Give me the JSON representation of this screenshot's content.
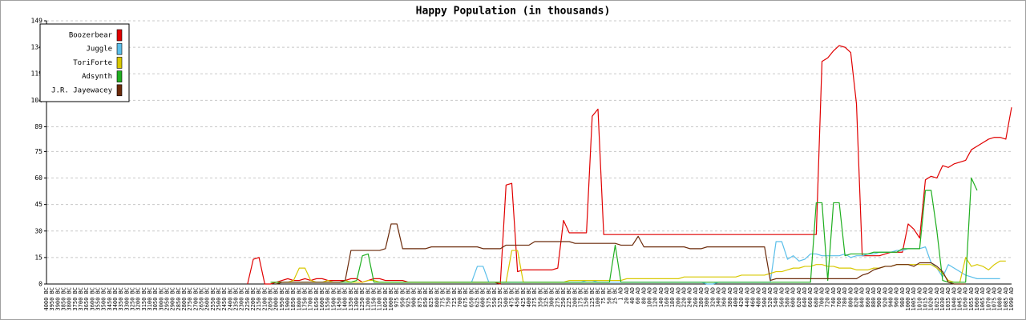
{
  "chart_data": {
    "type": "line",
    "title": "Happy Population (in thousands)",
    "categories": [
      "4000 BC",
      "3950 BC",
      "3900 BC",
      "3850 BC",
      "3800 BC",
      "3750 BC",
      "3700 BC",
      "3650 BC",
      "3600 BC",
      "3550 BC",
      "3500 BC",
      "3450 BC",
      "3400 BC",
      "3350 BC",
      "3300 BC",
      "3250 BC",
      "3200 BC",
      "3150 BC",
      "3100 BC",
      "3050 BC",
      "3000 BC",
      "2950 BC",
      "2900 BC",
      "2850 BC",
      "2800 BC",
      "2750 BC",
      "2700 BC",
      "2650 BC",
      "2600 BC",
      "2550 BC",
      "2500 BC",
      "2450 BC",
      "2400 BC",
      "2350 BC",
      "2300 BC",
      "2250 BC",
      "2200 BC",
      "2150 BC",
      "2100 BC",
      "2050 BC",
      "2000 BC",
      "1950 BC",
      "1900 BC",
      "1850 BC",
      "1800 BC",
      "1750 BC",
      "1700 BC",
      "1650 BC",
      "1600 BC",
      "1550 BC",
      "1500 BC",
      "1450 BC",
      "1400 BC",
      "1350 BC",
      "1300 BC",
      "1250 BC",
      "1200 BC",
      "1150 BC",
      "1100 BC",
      "1050 BC",
      "1000 BC",
      "975 BC",
      "950 BC",
      "925 BC",
      "900 BC",
      "875 BC",
      "850 BC",
      "825 BC",
      "800 BC",
      "775 BC",
      "750 BC",
      "725 BC",
      "700 BC",
      "675 BC",
      "650 BC",
      "625 BC",
      "600 BC",
      "575 BC",
      "550 BC",
      "525 BC",
      "500 BC",
      "475 BC",
      "450 BC",
      "425 BC",
      "400 BC",
      "375 BC",
      "350 BC",
      "325 BC",
      "300 BC",
      "275 BC",
      "250 BC",
      "225 BC",
      "200 BC",
      "175 BC",
      "150 BC",
      "125 BC",
      "100 BC",
      "75 BC",
      "50 BC",
      "25 BC",
      "1 AD",
      "20 AD",
      "40 AD",
      "60 AD",
      "80 AD",
      "100 AD",
      "120 AD",
      "140 AD",
      "160 AD",
      "180 AD",
      "200 AD",
      "220 AD",
      "240 AD",
      "260 AD",
      "280 AD",
      "300 AD",
      "320 AD",
      "340 AD",
      "360 AD",
      "380 AD",
      "400 AD",
      "420 AD",
      "440 AD",
      "460 AD",
      "480 AD",
      "500 AD",
      "520 AD",
      "540 AD",
      "560 AD",
      "580 AD",
      "600 AD",
      "620 AD",
      "640 AD",
      "660 AD",
      "680 AD",
      "700 AD",
      "720 AD",
      "740 AD",
      "760 AD",
      "780 AD",
      "800 AD",
      "820 AD",
      "840 AD",
      "860 AD",
      "880 AD",
      "900 AD",
      "920 AD",
      "940 AD",
      "960 AD",
      "980 AD",
      "1000 AD",
      "1005 AD",
      "1010 AD",
      "1015 AD",
      "1020 AD",
      "1025 AD",
      "1030 AD",
      "1035 AD",
      "1040 AD",
      "1045 AD",
      "1050 AD",
      "1055 AD",
      "1060 AD",
      "1065 AD",
      "1070 AD",
      "1075 AD",
      "1080 AD",
      "1085 AD",
      "1090 AD"
    ],
    "series": [
      {
        "name": "Boozerbear",
        "color": "#e00000",
        "values": [
          null,
          null,
          null,
          null,
          null,
          null,
          null,
          null,
          null,
          null,
          null,
          null,
          null,
          null,
          null,
          null,
          null,
          null,
          null,
          null,
          null,
          null,
          null,
          null,
          null,
          null,
          null,
          null,
          null,
          null,
          null,
          null,
          null,
          null,
          null,
          0,
          14,
          15,
          0,
          0,
          1,
          2,
          3,
          2,
          2,
          3,
          2,
          3,
          3,
          2,
          2,
          2,
          2,
          3,
          3,
          1,
          2,
          3,
          3,
          2,
          2,
          2,
          2,
          1,
          1,
          1,
          1,
          1,
          1,
          1,
          1,
          1,
          1,
          1,
          1,
          1,
          1,
          1,
          1,
          0,
          56,
          57,
          7,
          8,
          8,
          8,
          8,
          8,
          8,
          9,
          36,
          29,
          29,
          29,
          29,
          95,
          99,
          28,
          28,
          28,
          28,
          28,
          28,
          28,
          28,
          28,
          28,
          28,
          28,
          28,
          28,
          28,
          28,
          28,
          28,
          28,
          28,
          28,
          28,
          28,
          28,
          28,
          28,
          28,
          28,
          28,
          28,
          28,
          28,
          28,
          28,
          28,
          28,
          28,
          28,
          126,
          128,
          132,
          135,
          134,
          131,
          102,
          16,
          16,
          16,
          16,
          17,
          18,
          18,
          18,
          34,
          31,
          26,
          59,
          61,
          60,
          67,
          66,
          68,
          69,
          70,
          76,
          78,
          80,
          82,
          83,
          83,
          82,
          100
        ]
      },
      {
        "name": "Juggle",
        "color": "#5bbfea",
        "values": [
          null,
          null,
          null,
          null,
          null,
          null,
          null,
          null,
          null,
          null,
          null,
          null,
          null,
          null,
          null,
          null,
          null,
          null,
          null,
          null,
          null,
          null,
          null,
          null,
          null,
          null,
          null,
          null,
          null,
          null,
          null,
          null,
          null,
          null,
          null,
          null,
          null,
          null,
          null,
          null,
          null,
          null,
          null,
          null,
          null,
          null,
          null,
          null,
          null,
          null,
          null,
          null,
          null,
          null,
          null,
          null,
          null,
          null,
          null,
          null,
          null,
          null,
          null,
          null,
          null,
          null,
          null,
          null,
          null,
          null,
          null,
          null,
          1,
          1,
          1,
          10,
          10,
          1,
          1,
          1,
          1,
          1,
          1,
          1,
          1,
          1,
          1,
          1,
          1,
          1,
          1,
          1,
          1,
          1,
          2,
          2,
          1,
          1,
          1,
          1,
          1,
          1,
          1,
          1,
          1,
          1,
          1,
          1,
          1,
          1,
          1,
          1,
          1,
          1,
          1,
          0,
          0,
          1,
          1,
          1,
          1,
          1,
          1,
          1,
          1,
          1,
          1,
          24,
          24,
          14,
          16,
          13,
          14,
          17,
          17,
          16,
          16,
          16,
          16,
          17,
          15,
          16,
          16,
          17,
          17,
          18,
          18,
          18,
          19,
          19,
          20,
          20,
          20,
          21,
          12,
          9,
          4,
          11,
          9,
          7,
          5,
          4,
          3,
          3,
          3,
          3,
          3,
          null,
          null
        ]
      },
      {
        "name": "ToriForte",
        "color": "#d8c800",
        "values": [
          null,
          null,
          null,
          null,
          null,
          null,
          null,
          null,
          null,
          null,
          null,
          null,
          null,
          null,
          null,
          null,
          null,
          null,
          null,
          null,
          null,
          null,
          null,
          null,
          null,
          null,
          null,
          null,
          null,
          null,
          null,
          null,
          null,
          null,
          null,
          null,
          null,
          null,
          null,
          1,
          1,
          1,
          1,
          2,
          9,
          9,
          2,
          1,
          1,
          2,
          1,
          1,
          2,
          1,
          1,
          1,
          2,
          2,
          1,
          1,
          1,
          1,
          1,
          1,
          1,
          1,
          1,
          1,
          1,
          1,
          1,
          1,
          1,
          1,
          1,
          1,
          1,
          1,
          1,
          1,
          1,
          19,
          19,
          1,
          1,
          1,
          1,
          1,
          1,
          1,
          1,
          2,
          2,
          2,
          2,
          2,
          2,
          2,
          2,
          2,
          2,
          3,
          3,
          3,
          3,
          3,
          3,
          3,
          3,
          3,
          3,
          4,
          4,
          4,
          4,
          4,
          4,
          4,
          4,
          4,
          4,
          5,
          5,
          5,
          5,
          5,
          6,
          7,
          7,
          8,
          9,
          9,
          10,
          10,
          11,
          11,
          10,
          10,
          9,
          9,
          9,
          8,
          8,
          8,
          9,
          9,
          10,
          10,
          11,
          11,
          11,
          11,
          11,
          11,
          11,
          9,
          6,
          2,
          1,
          1,
          15,
          10,
          11,
          10,
          8,
          11,
          13,
          13,
          null
        ]
      },
      {
        "name": "Adsynth",
        "color": "#1fae1f",
        "values": [
          null,
          null,
          null,
          null,
          null,
          null,
          null,
          null,
          null,
          null,
          null,
          null,
          null,
          null,
          null,
          null,
          null,
          null,
          null,
          null,
          null,
          null,
          null,
          null,
          null,
          null,
          null,
          null,
          null,
          null,
          null,
          null,
          null,
          null,
          null,
          null,
          null,
          null,
          null,
          1,
          1,
          1,
          1,
          1,
          1,
          1,
          1,
          1,
          1,
          1,
          1,
          1,
          1,
          1,
          2,
          16,
          17,
          1,
          1,
          1,
          1,
          1,
          1,
          1,
          1,
          1,
          1,
          1,
          1,
          1,
          1,
          1,
          1,
          1,
          1,
          1,
          1,
          1,
          1,
          1,
          1,
          1,
          1,
          1,
          1,
          1,
          1,
          1,
          1,
          1,
          1,
          1,
          1,
          1,
          1,
          1,
          1,
          1,
          1,
          22,
          1,
          1,
          1,
          1,
          1,
          1,
          1,
          1,
          1,
          1,
          1,
          1,
          1,
          1,
          1,
          1,
          1,
          1,
          1,
          1,
          1,
          1,
          1,
          1,
          1,
          1,
          1,
          1,
          1,
          1,
          1,
          1,
          1,
          1,
          46,
          46,
          2,
          46,
          46,
          16,
          17,
          17,
          17,
          17,
          18,
          18,
          18,
          18,
          18,
          20,
          20,
          20,
          20,
          53,
          53,
          30,
          2,
          1,
          1,
          1,
          1,
          60,
          53,
          null,
          null,
          null,
          null,
          null,
          null
        ]
      },
      {
        "name": "J.R. Jayewacey",
        "color": "#6b2a0a",
        "values": [
          null,
          null,
          null,
          null,
          null,
          null,
          null,
          null,
          null,
          null,
          null,
          null,
          null,
          null,
          null,
          null,
          null,
          null,
          null,
          null,
          null,
          null,
          null,
          null,
          null,
          null,
          null,
          null,
          null,
          null,
          null,
          null,
          null,
          null,
          null,
          null,
          null,
          null,
          null,
          null,
          0,
          1,
          1,
          1,
          1,
          1,
          1,
          1,
          1,
          1,
          1,
          1,
          2,
          19,
          19,
          19,
          19,
          19,
          19,
          20,
          34,
          34,
          20,
          20,
          20,
          20,
          20,
          21,
          21,
          21,
          21,
          21,
          21,
          21,
          21,
          21,
          20,
          20,
          20,
          20,
          22,
          22,
          22,
          22,
          22,
          24,
          24,
          24,
          24,
          24,
          24,
          24,
          23,
          23,
          23,
          23,
          23,
          23,
          23,
          23,
          22,
          22,
          22,
          27,
          21,
          21,
          21,
          21,
          21,
          21,
          21,
          21,
          20,
          20,
          20,
          21,
          21,
          21,
          21,
          21,
          21,
          21,
          21,
          21,
          21,
          21,
          2,
          3,
          3,
          3,
          3,
          3,
          3,
          3,
          3,
          3,
          3,
          3,
          3,
          3,
          3,
          3,
          5,
          6,
          8,
          9,
          10,
          10,
          11,
          11,
          11,
          10,
          12,
          12,
          12,
          10,
          7,
          1,
          0,
          0,
          0,
          null,
          null,
          null,
          null,
          null,
          null,
          null,
          null
        ]
      }
    ],
    "ylim": [
      0,
      149
    ],
    "yticks": [
      0,
      15,
      30,
      45,
      60,
      75,
      89,
      104,
      119,
      134,
      149
    ],
    "grid": true,
    "legend": "upper left"
  }
}
